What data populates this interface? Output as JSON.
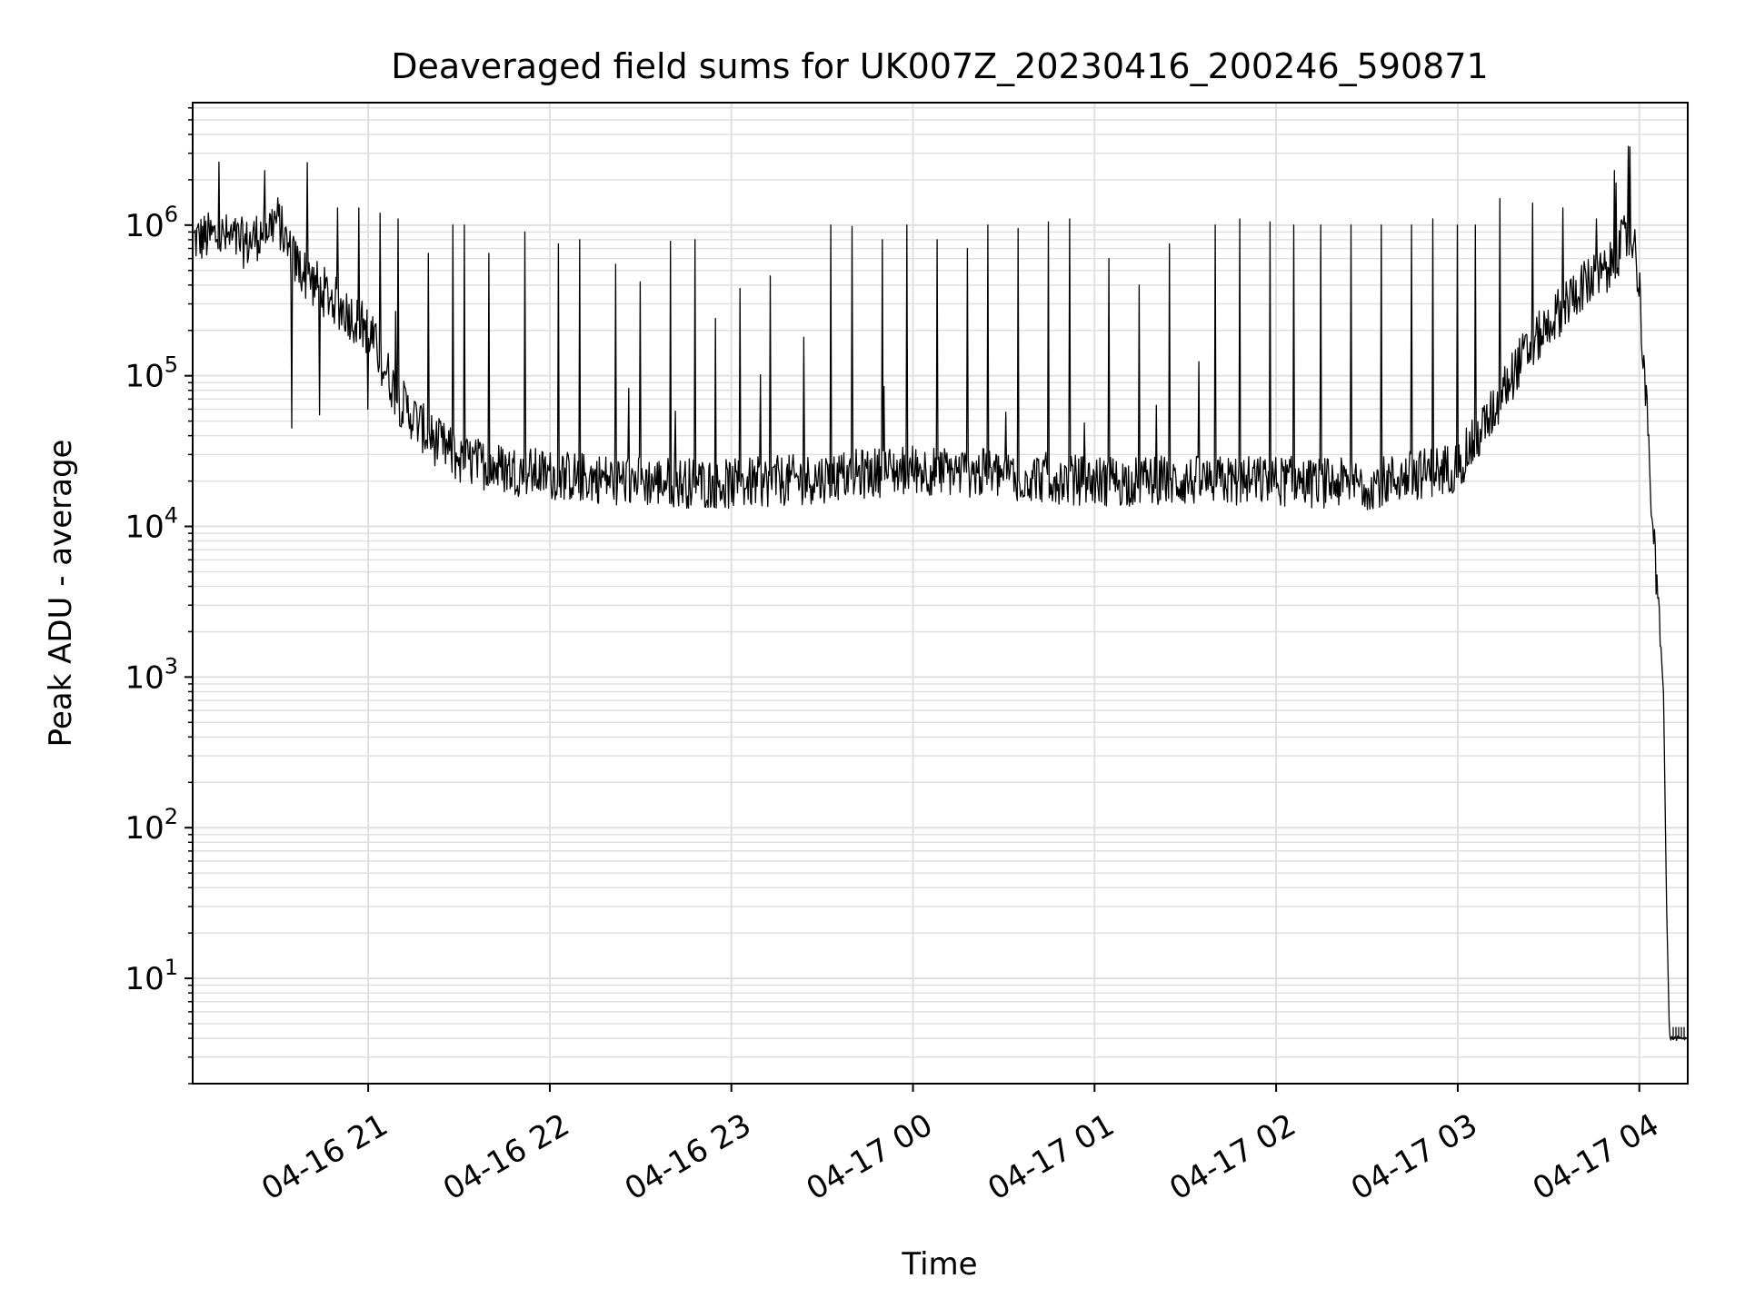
{
  "chart_data": {
    "type": "line",
    "title": "Deaveraged field sums for UK007Z_20230416_200246_590871",
    "xlabel": "Time",
    "ylabel": "Peak ADU - average",
    "x_tick_labels": [
      "04-16 21",
      "04-16 22",
      "04-16 23",
      "04-17 00",
      "04-17 01",
      "04-17 02",
      "04-17 03",
      "04-17 04"
    ],
    "x_ticks": [
      "2023-04-16 21:00",
      "2023-04-16 22:00",
      "2023-04-16 23:00",
      "2023-04-17 00:00",
      "2023-04-17 01:00",
      "2023-04-17 02:00",
      "2023-04-17 03:00",
      "2023-04-17 04:00"
    ],
    "xlim": [
      "2023-04-16 20:02",
      "2023-04-17 04:16"
    ],
    "y_scale": "log",
    "ylim": [
      2,
      6500000
    ],
    "y_ticks": [
      10,
      100,
      1000,
      10000,
      100000,
      1000000
    ],
    "y_tick_labels": [
      {
        "base": "10",
        "exp": "1"
      },
      {
        "base": "10",
        "exp": "2"
      },
      {
        "base": "10",
        "exp": "3"
      },
      {
        "base": "10",
        "exp": "4"
      },
      {
        "base": "10",
        "exp": "5"
      },
      {
        "base": "10",
        "exp": "6"
      }
    ],
    "grid": true,
    "minor_grid": true,
    "line_color": "#000000",
    "grid_color": "#e0e0e0",
    "series": [
      {
        "x": [
          "2023-04-16 20:02",
          "2023-04-16 20:10",
          "2023-04-16 20:20",
          "2023-04-16 20:30",
          "2023-04-16 20:35",
          "2023-04-16 20:40",
          "2023-04-16 20:50",
          "2023-04-16 21:00",
          "2023-04-16 21:05",
          "2023-04-16 21:10",
          "2023-04-16 21:20",
          "2023-04-16 21:30",
          "2023-04-16 21:45",
          "2023-04-16 22:00",
          "2023-04-16 22:30",
          "2023-04-16 23:00",
          "2023-04-16 23:30",
          "2023-04-17 00:00",
          "2023-04-17 00:30",
          "2023-04-17 01:00",
          "2023-04-17 01:30",
          "2023-04-17 02:00",
          "2023-04-17 02:30",
          "2023-04-17 03:00",
          "2023-04-17 03:10",
          "2023-04-17 03:20",
          "2023-04-17 03:30",
          "2023-04-17 03:40",
          "2023-04-17 03:50",
          "2023-04-17 03:55",
          "2023-04-17 03:58",
          "2023-04-17 04:00",
          "2023-04-17 04:02",
          "2023-04-17 04:04",
          "2023-04-17 04:06",
          "2023-04-17 04:07",
          "2023-04-17 04:08",
          "2023-04-17 04:09",
          "2023-04-17 04:10",
          "2023-04-17 04:16"
        ],
        "y": [
          800000,
          850000,
          750000,
          1100000,
          600000,
          450000,
          300000,
          200000,
          120000,
          70000,
          40000,
          28000,
          24000,
          22000,
          20000,
          19000,
          21000,
          24000,
          22000,
          20000,
          20000,
          20000,
          19000,
          25000,
          50000,
          120000,
          220000,
          380000,
          500000,
          800000,
          850000,
          400000,
          80000,
          15000,
          3000,
          1800,
          800,
          30,
          4,
          4
        ],
        "spikes": [
          [
            "2023-04-16 20:26",
            2300000
          ],
          [
            "2023-04-16 20:35",
            45000
          ],
          [
            "2023-04-16 20:40",
            2600000
          ],
          [
            "2023-04-16 20:44",
            55000
          ],
          [
            "2023-04-16 20:50",
            1300000
          ],
          [
            "2023-04-16 20:57",
            1300000
          ],
          [
            "2023-04-16 21:00",
            60000
          ],
          [
            "2023-04-16 21:04",
            1200000
          ],
          [
            "2023-04-16 21:10",
            1100000
          ],
          [
            "2023-04-16 21:20",
            650000
          ],
          [
            "2023-04-16 21:28",
            1000000
          ],
          [
            "2023-04-16 21:32",
            1000000
          ],
          [
            "2023-04-16 21:40",
            650000
          ],
          [
            "2023-04-16 21:52",
            900000
          ],
          [
            "2023-04-16 22:03",
            750000
          ],
          [
            "2023-04-16 22:10",
            800000
          ],
          [
            "2023-04-16 22:22",
            550000
          ],
          [
            "2023-04-16 22:30",
            420000
          ],
          [
            "2023-04-16 22:40",
            780000
          ],
          [
            "2023-04-16 22:48",
            800000
          ],
          [
            "2023-04-16 22:55",
            240000
          ],
          [
            "2023-04-16 23:03",
            380000
          ],
          [
            "2023-04-16 23:13",
            460000
          ],
          [
            "2023-04-16 23:24",
            180000
          ],
          [
            "2023-04-16 23:33",
            1000000
          ],
          [
            "2023-04-16 23:40",
            980000
          ],
          [
            "2023-04-16 23:50",
            800000
          ],
          [
            "2023-04-16 23:58",
            1000000
          ],
          [
            "2023-04-17 00:08",
            800000
          ],
          [
            "2023-04-17 00:18",
            700000
          ],
          [
            "2023-04-17 00:25",
            1000000
          ],
          [
            "2023-04-17 00:35",
            950000
          ],
          [
            "2023-04-17 00:45",
            1050000
          ],
          [
            "2023-04-17 00:52",
            1100000
          ],
          [
            "2023-04-17 01:05",
            600000
          ],
          [
            "2023-04-17 01:15",
            400000
          ],
          [
            "2023-04-17 01:25",
            750000
          ],
          [
            "2023-04-17 01:40",
            1000000
          ],
          [
            "2023-04-17 01:48",
            1100000
          ],
          [
            "2023-04-17 01:58",
            1050000
          ],
          [
            "2023-04-17 02:06",
            1000000
          ],
          [
            "2023-04-17 02:15",
            1000000
          ],
          [
            "2023-04-17 02:25",
            1000000
          ],
          [
            "2023-04-17 02:35",
            1000000
          ],
          [
            "2023-04-17 02:45",
            1000000
          ],
          [
            "2023-04-17 02:52",
            1100000
          ],
          [
            "2023-04-17 03:00",
            1000000
          ],
          [
            "2023-04-17 03:06",
            1000000
          ],
          [
            "2023-04-17 03:14",
            1500000
          ],
          [
            "2023-04-17 03:25",
            1400000
          ],
          [
            "2023-04-17 03:35",
            1300000
          ],
          [
            "2023-04-17 03:46",
            1100000
          ],
          [
            "2023-04-17 03:52",
            2300000
          ],
          [
            "2023-04-17 03:57",
            3300000
          ]
        ]
      }
    ]
  }
}
